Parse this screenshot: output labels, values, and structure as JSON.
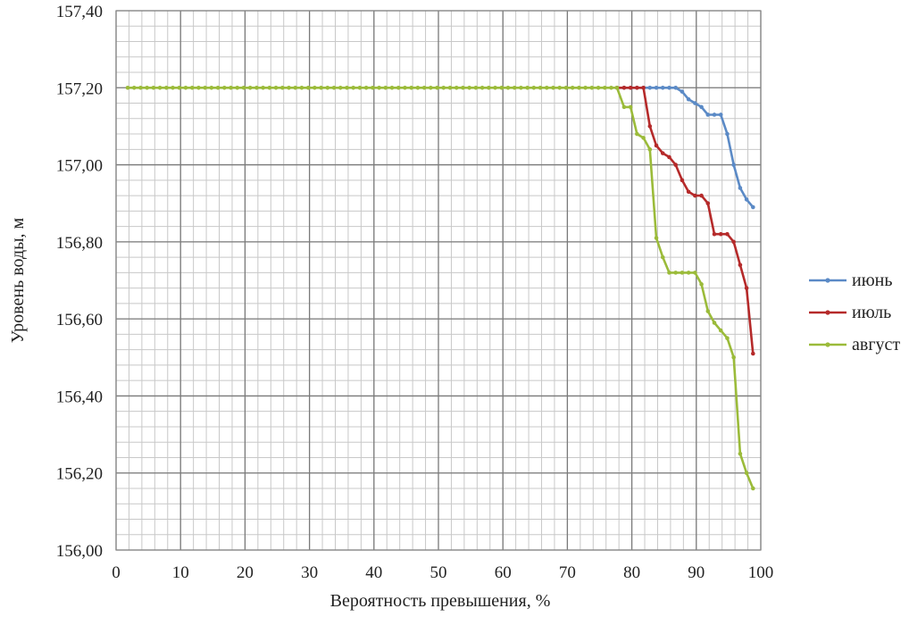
{
  "chart_data": {
    "type": "line",
    "title": "",
    "xlabel": "Вероятность превышения, %",
    "ylabel": "Уровень воды, м",
    "xlim": [
      0,
      100
    ],
    "ylim": [
      156.0,
      157.4
    ],
    "x_ticks": [
      0,
      10,
      20,
      30,
      40,
      50,
      60,
      70,
      80,
      90,
      100
    ],
    "x_tick_labels": [
      "0",
      "10",
      "20",
      "30",
      "40",
      "50",
      "60",
      "70",
      "80",
      "90",
      "100"
    ],
    "y_ticks": [
      156.0,
      156.2,
      156.4,
      156.6,
      156.8,
      157.0,
      157.2,
      157.4
    ],
    "y_tick_labels": [
      "156,00",
      "156,20",
      "156,40",
      "156,60",
      "156,80",
      "157,00",
      "157,20",
      "157,40"
    ],
    "grid": true,
    "legend_position": "right",
    "series": [
      {
        "name": "июнь",
        "color": "#5b8ac6",
        "x": [
          77.7,
          78.8,
          79.8,
          80.8,
          81.8,
          82.8,
          83.8,
          84.8,
          85.8,
          86.8,
          87.8,
          88.8,
          89.8,
          90.8,
          91.8,
          92.8,
          93.8,
          94.8,
          95.8,
          96.8,
          97.8,
          98.8
        ],
        "y": [
          157.2,
          157.2,
          157.2,
          157.2,
          157.2,
          157.2,
          157.2,
          157.2,
          157.2,
          157.2,
          157.19,
          157.17,
          157.16,
          157.15,
          157.13,
          157.13,
          157.13,
          157.08,
          157.0,
          156.94,
          156.91,
          156.89
        ]
      },
      {
        "name": "июль",
        "color": "#b52a2a",
        "x": [
          77.7,
          78.8,
          79.8,
          80.8,
          81.8,
          82.8,
          83.8,
          84.8,
          85.8,
          86.8,
          87.8,
          88.8,
          89.8,
          90.8,
          91.8,
          92.8,
          93.8,
          94.8,
          95.8,
          96.8,
          97.8,
          98.8
        ],
        "y": [
          157.2,
          157.2,
          157.2,
          157.2,
          157.2,
          157.1,
          157.05,
          157.03,
          157.02,
          157.0,
          156.96,
          156.93,
          156.92,
          156.92,
          156.9,
          156.82,
          156.82,
          156.82,
          156.8,
          156.74,
          156.68,
          156.51
        ]
      },
      {
        "name": "август",
        "color": "#9bbb3a",
        "x": [
          1.8,
          2.8,
          3.8,
          4.8,
          5.8,
          6.8,
          7.8,
          8.8,
          9.8,
          10.8,
          11.8,
          12.8,
          13.8,
          14.8,
          15.8,
          16.8,
          17.8,
          18.8,
          19.8,
          20.8,
          21.8,
          22.8,
          23.8,
          24.8,
          25.8,
          26.8,
          27.8,
          28.8,
          29.8,
          30.8,
          31.8,
          32.8,
          33.8,
          34.8,
          35.8,
          36.8,
          37.8,
          38.8,
          39.8,
          40.8,
          41.8,
          42.8,
          43.8,
          44.8,
          45.8,
          46.8,
          47.8,
          48.8,
          49.8,
          50.8,
          51.8,
          52.8,
          53.8,
          54.8,
          55.8,
          56.8,
          57.8,
          58.8,
          59.8,
          60.8,
          61.8,
          62.8,
          63.8,
          64.8,
          65.8,
          66.8,
          67.8,
          68.8,
          69.8,
          70.8,
          71.8,
          72.8,
          73.8,
          74.8,
          75.8,
          76.8,
          77.7,
          78.8,
          79.8,
          80.8,
          81.8,
          82.8,
          83.8,
          84.8,
          85.8,
          86.8,
          87.8,
          88.8,
          89.8,
          90.8,
          91.8,
          92.8,
          93.8,
          94.8,
          95.8,
          96.8,
          97.8,
          98.8
        ],
        "y": [
          157.2,
          157.2,
          157.2,
          157.2,
          157.2,
          157.2,
          157.2,
          157.2,
          157.2,
          157.2,
          157.2,
          157.2,
          157.2,
          157.2,
          157.2,
          157.2,
          157.2,
          157.2,
          157.2,
          157.2,
          157.2,
          157.2,
          157.2,
          157.2,
          157.2,
          157.2,
          157.2,
          157.2,
          157.2,
          157.2,
          157.2,
          157.2,
          157.2,
          157.2,
          157.2,
          157.2,
          157.2,
          157.2,
          157.2,
          157.2,
          157.2,
          157.2,
          157.2,
          157.2,
          157.2,
          157.2,
          157.2,
          157.2,
          157.2,
          157.2,
          157.2,
          157.2,
          157.2,
          157.2,
          157.2,
          157.2,
          157.2,
          157.2,
          157.2,
          157.2,
          157.2,
          157.2,
          157.2,
          157.2,
          157.2,
          157.2,
          157.2,
          157.2,
          157.2,
          157.2,
          157.2,
          157.2,
          157.2,
          157.2,
          157.2,
          157.2,
          157.2,
          157.15,
          157.15,
          157.08,
          157.07,
          157.04,
          156.81,
          156.76,
          156.72,
          156.72,
          156.72,
          156.72,
          156.72,
          156.69,
          156.62,
          156.59,
          156.57,
          156.55,
          156.5,
          156.25,
          156.2,
          156.16
        ]
      }
    ]
  }
}
